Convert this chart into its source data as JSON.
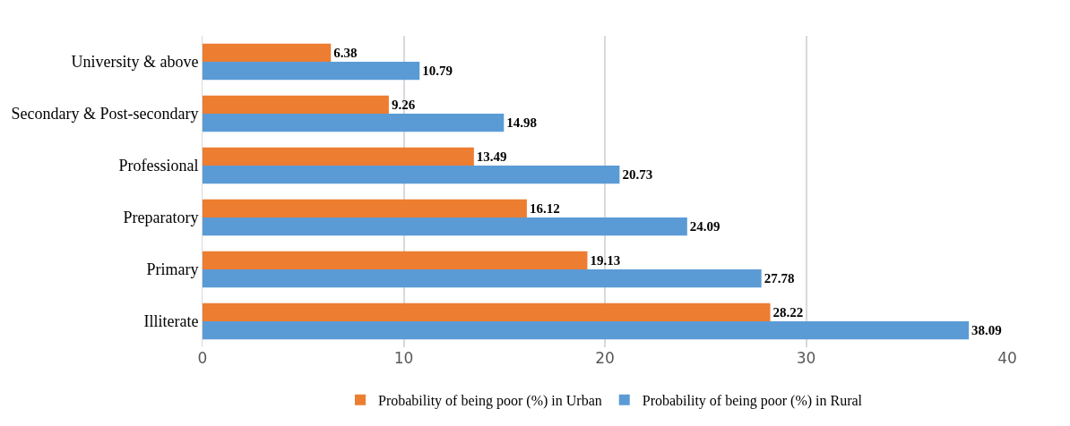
{
  "chart_data": {
    "type": "bar",
    "orientation": "horizontal",
    "categories": [
      "University & above",
      "Secondary & Post-secondary",
      "Professional",
      "Preparatory",
      "Primary",
      "Illiterate"
    ],
    "series": [
      {
        "name": "Probability of being poor (%) in Urban",
        "color": "#ed7d31",
        "values": [
          6.38,
          9.26,
          13.49,
          16.12,
          19.13,
          28.22
        ]
      },
      {
        "name": "Probability of being poor (%) in Rural",
        "color": "#5b9bd5",
        "values": [
          10.79,
          14.98,
          20.73,
          24.09,
          27.78,
          38.09
        ]
      }
    ],
    "xlim": [
      0,
      40
    ],
    "xticks": [
      0,
      10,
      20,
      30,
      40
    ],
    "grid": "x",
    "legend": "bottom",
    "data_labels": true
  }
}
